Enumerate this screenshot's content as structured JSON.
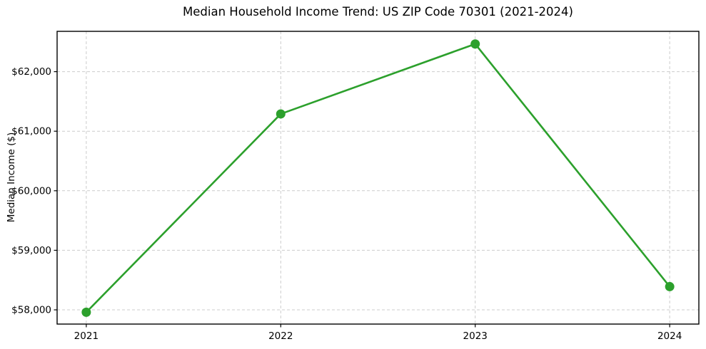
{
  "chart_data": {
    "type": "line",
    "title": "Median Household Income Trend: US ZIP Code 70301 (2021-2024)",
    "xlabel": "",
    "ylabel": "Median Income ($)",
    "x": [
      2021,
      2022,
      2023,
      2024
    ],
    "values": [
      57960,
      61290,
      62465,
      58390
    ],
    "x_tick_labels": [
      "2021",
      "2022",
      "2023",
      "2024"
    ],
    "y_ticks": [
      58000,
      59000,
      60000,
      61000,
      62000
    ],
    "y_tick_labels": [
      "$58,000",
      "$59,000",
      "$60,000",
      "$61,000",
      "$62,000"
    ],
    "xlim": [
      2020.85,
      2024.15
    ],
    "ylim": [
      57761,
      62677
    ],
    "grid": true,
    "grid_style": "dashed",
    "legend_position": "none",
    "line_color": "#2ca02c",
    "marker": "circle",
    "grid_color": "#cccccc",
    "axis_color": "#000000",
    "background": "#ffffff"
  }
}
